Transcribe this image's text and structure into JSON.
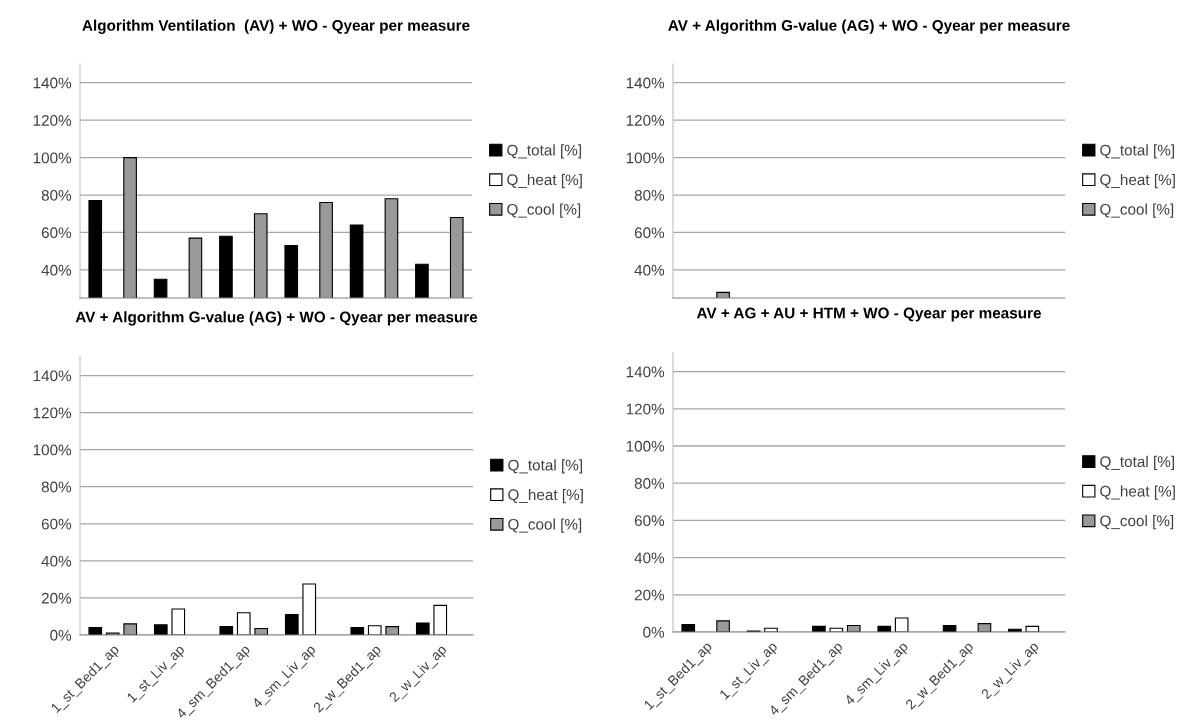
{
  "chart_data": [
    {
      "type": "bar",
      "title": "Algorithm Ventilation  (AV) + WO - Qyear per measure",
      "categories": [
        null,
        null,
        null,
        null,
        null,
        null
      ],
      "tick_labels": "y",
      "series": [
        {
          "name": "Q_total [%]",
          "color": "#000000",
          "values": [
            77,
            35,
            58,
            53,
            64,
            43
          ]
        },
        {
          "name": "Q_heat [%]",
          "color": "#ffffff",
          "values": [
            null,
            null,
            null,
            null,
            null,
            null
          ]
        },
        {
          "name": "Q_cool [%]",
          "color": "#999999",
          "values": [
            100,
            57,
            70,
            76,
            78,
            68
          ]
        }
      ],
      "ylim": [
        25,
        150
      ],
      "yticks": [
        {
          "value": 40,
          "label": "40%"
        },
        {
          "value": 60,
          "label": "60%"
        },
        {
          "value": 80,
          "label": "80%"
        },
        {
          "value": 100,
          "label": "100%"
        },
        {
          "value": 120,
          "label": "120%"
        },
        {
          "value": 140,
          "label": "140%"
        }
      ],
      "grid": "y",
      "legend": "right"
    },
    {
      "type": "bar",
      "title": "AV + Algorithm G-value (AG) + WO - Qyear per measure",
      "categories": [
        null,
        null,
        null,
        null,
        null,
        null
      ],
      "tick_labels": "y",
      "series": [
        {
          "name": "Q_total [%]",
          "color": "#000000",
          "values": [
            null,
            null,
            null,
            null,
            null,
            null
          ]
        },
        {
          "name": "Q_heat [%]",
          "color": "#ffffff",
          "values": [
            null,
            null,
            null,
            null,
            null,
            null
          ]
        },
        {
          "name": "Q_cool [%]",
          "color": "#999999",
          "values": [
            28,
            null,
            null,
            null,
            null,
            null
          ]
        }
      ],
      "ylim": [
        25,
        150
      ],
      "yticks": [
        {
          "value": 40,
          "label": "40%"
        },
        {
          "value": 60,
          "label": "60%"
        },
        {
          "value": 80,
          "label": "80%"
        },
        {
          "value": 100,
          "label": "100%"
        },
        {
          "value": 120,
          "label": "120%"
        },
        {
          "value": 140,
          "label": "140%"
        }
      ],
      "grid": "y",
      "legend": "right"
    },
    {
      "type": "bar",
      "title": "AV + Algorithm G-value (AG) + WO - Qyear per measure",
      "categories": [
        "1_st_Bed1_ap",
        "1_st_Liv_ap",
        "4_sm_Bed1_ap",
        "4_sm_Liv_ap",
        "2_w_Bed1_ap",
        "2_w_Liv_ap"
      ],
      "series": [
        {
          "name": "Q_total [%]",
          "color": "#000000",
          "values": [
            4,
            5.5,
            4.5,
            11,
            4,
            6.5
          ]
        },
        {
          "name": "Q_heat [%]",
          "color": "#ffffff",
          "values": [
            1,
            14,
            12,
            27.5,
            5,
            16
          ]
        },
        {
          "name": "Q_cool [%]",
          "color": "#999999",
          "values": [
            6,
            0,
            3.5,
            0,
            4.5,
            0
          ]
        }
      ],
      "ylim": [
        0,
        150
      ],
      "yticks": [
        {
          "value": 0,
          "label": "0%"
        },
        {
          "value": 20,
          "label": "20%"
        },
        {
          "value": 40,
          "label": "40%"
        },
        {
          "value": 60,
          "label": "60%"
        },
        {
          "value": 80,
          "label": "80%"
        },
        {
          "value": 100,
          "label": "100%"
        },
        {
          "value": 120,
          "label": "120%"
        },
        {
          "value": 140,
          "label": "140%"
        }
      ],
      "grid": "y",
      "legend": "right"
    },
    {
      "type": "bar",
      "title": "AV + AG + AU + HTM + WO - Qyear per measure",
      "categories": [
        "1_st_Bed1_ap",
        "1_st_Liv_ap",
        "4_sm_Bed1_ap",
        "4_sm_Liv_ap",
        "2_w_Bed1_ap",
        "2_w_Liv_ap"
      ],
      "series": [
        {
          "name": "Q_total [%]",
          "color": "#000000",
          "values": [
            4,
            0.5,
            3,
            3,
            3.5,
            1.5
          ]
        },
        {
          "name": "Q_heat [%]",
          "color": "#ffffff",
          "values": [
            0,
            2,
            2,
            7.5,
            0,
            3
          ]
        },
        {
          "name": "Q_cool [%]",
          "color": "#999999",
          "values": [
            6,
            0,
            3.5,
            0,
            4.5,
            0
          ]
        }
      ],
      "ylim": [
        0,
        150
      ],
      "yticks": [
        {
          "value": 0,
          "label": "0%"
        },
        {
          "value": 20,
          "label": "20%"
        },
        {
          "value": 40,
          "label": "40%"
        },
        {
          "value": 60,
          "label": "60%"
        },
        {
          "value": 80,
          "label": "80%"
        },
        {
          "value": 100,
          "label": "100%"
        },
        {
          "value": 120,
          "label": "120%"
        },
        {
          "value": 140,
          "label": "140%"
        }
      ],
      "grid": "y",
      "legend": "right"
    }
  ]
}
